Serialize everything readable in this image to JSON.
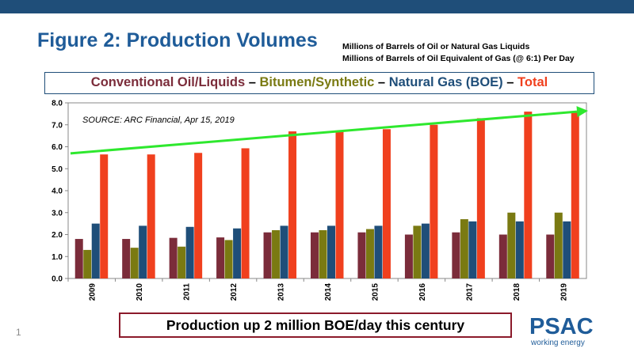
{
  "slide": {
    "title": "Figure 2: Production Volumes",
    "subtitle_line1": "Millions of Barrels of Oil or Natural Gas Liquids",
    "subtitle_line2": "Millions of Barrels of Oil Equivalent of Gas (@ 6:1) Per Day",
    "legend": {
      "conventional": "Conventional Oil/Liquids",
      "bitumen": "Bitumen/Synthetic",
      "gas": "Natural Gas (BOE)",
      "total": "Total",
      "separator": " – "
    },
    "callout": "Production up 2 million BOE/day this century",
    "page_number": "1",
    "logo_text": "PSAC",
    "logo_tagline": "working energy"
  },
  "colors": {
    "conventional": "#7b2c3a",
    "bitumen": "#7a7a12",
    "gas": "#1f4e79",
    "total": "#f0401e",
    "trend": "#2ee82e",
    "brand": "#1f5c99"
  },
  "chart_data": {
    "type": "bar",
    "categories": [
      "2009",
      "2010",
      "2011",
      "2012",
      "2013",
      "2014",
      "2015",
      "2016",
      "2017",
      "2018",
      "2019"
    ],
    "series": [
      {
        "name": "Conventional Oil/Liquids",
        "values": [
          1.8,
          1.8,
          1.85,
          1.87,
          2.1,
          2.1,
          2.1,
          2.0,
          2.1,
          2.0,
          2.0
        ]
      },
      {
        "name": "Bitumen/Synthetic",
        "values": [
          1.3,
          1.4,
          1.45,
          1.75,
          2.2,
          2.2,
          2.25,
          2.4,
          2.7,
          3.0,
          3.0
        ]
      },
      {
        "name": "Natural Gas (BOE)",
        "values": [
          2.5,
          2.4,
          2.35,
          2.28,
          2.4,
          2.4,
          2.4,
          2.5,
          2.6,
          2.6,
          2.6
        ]
      },
      {
        "name": "Total",
        "values": [
          5.65,
          5.65,
          5.72,
          5.93,
          6.7,
          6.7,
          6.8,
          7.0,
          7.3,
          7.6,
          7.6
        ]
      }
    ],
    "trendline": {
      "from": 5.7,
      "to": 7.6
    },
    "ylim": [
      0,
      8
    ],
    "yticks": [
      "0.0",
      "1.0",
      "2.0",
      "3.0",
      "4.0",
      "5.0",
      "6.0",
      "7.0",
      "8.0"
    ],
    "annotation": "SOURCE: ARC Financial, Apr 15, 2019",
    "grid": false
  }
}
